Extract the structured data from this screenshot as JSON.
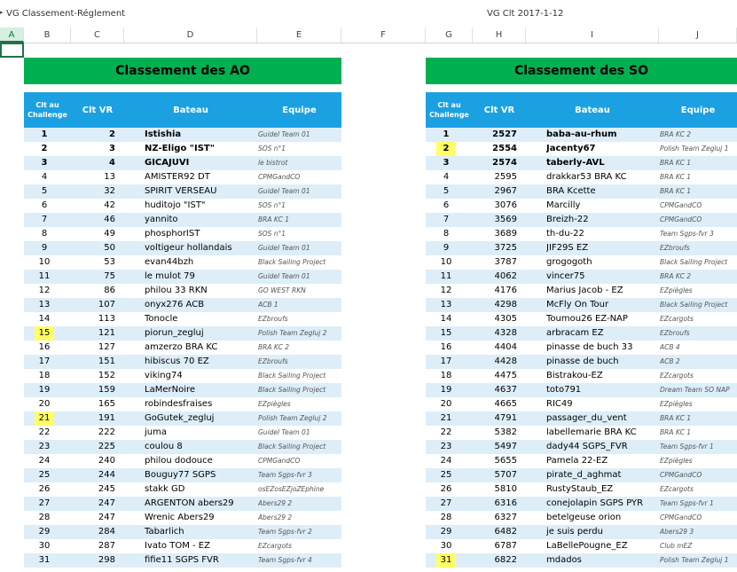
{
  "window": {
    "title": "VG Classement-Réglement",
    "center_title": "VG Clt 2017-1-12"
  },
  "columns": [
    "A",
    "B",
    "C",
    "D",
    "E",
    "F",
    "G",
    "H",
    "I",
    "J"
  ],
  "ao": {
    "banner": "Classement des AO",
    "headers": {
      "rank": "Clt au Challenge",
      "vr": "Clt VR",
      "boat": "Bateau",
      "team": "Equipe"
    },
    "rows": [
      {
        "rank": "1",
        "vr": "2",
        "boat": "Istishia",
        "team": "Guidel Team 01",
        "bold": true
      },
      {
        "rank": "2",
        "vr": "3",
        "boat": "NZ-Eligo \"IST\"",
        "team": "SOS n°1",
        "bold": true
      },
      {
        "rank": "3",
        "vr": "4",
        "boat": "GICAJUVI",
        "team": "le bistrot",
        "bold": true
      },
      {
        "rank": "4",
        "vr": "13",
        "boat": "AMISTER92 DT",
        "team": "CPMGandCO"
      },
      {
        "rank": "5",
        "vr": "32",
        "boat": "SPIRIT VERSEAU",
        "team": "Guidel Team 01"
      },
      {
        "rank": "6",
        "vr": "42",
        "boat": "huditojo \"IST\"",
        "team": "SOS n°1"
      },
      {
        "rank": "7",
        "vr": "46",
        "boat": "yannito",
        "team": "BRA KC 1"
      },
      {
        "rank": "8",
        "vr": "49",
        "boat": "phosphorIST",
        "team": "SOS n°1"
      },
      {
        "rank": "9",
        "vr": "50",
        "boat": "voltigeur hollandais",
        "team": "Guidel Team 01"
      },
      {
        "rank": "10",
        "vr": "53",
        "boat": "evan44bzh",
        "team": "Black Sailing Project"
      },
      {
        "rank": "11",
        "vr": "75",
        "boat": "le mulot 79",
        "team": "Guidel Team 01"
      },
      {
        "rank": "12",
        "vr": "86",
        "boat": "philou 33 RKN",
        "team": "GO WEST RKN"
      },
      {
        "rank": "13",
        "vr": "107",
        "boat": "onyx276 ACB",
        "team": "ACB 1"
      },
      {
        "rank": "14",
        "vr": "113",
        "boat": "Tonocle",
        "team": "EZbroufs"
      },
      {
        "rank": "15",
        "vr": "121",
        "boat": "piorun_zegluj",
        "team": "Polish Team Zegluj 2",
        "hl": true
      },
      {
        "rank": "16",
        "vr": "127",
        "boat": "amzerzo BRA KC",
        "team": "BRA KC 2"
      },
      {
        "rank": "17",
        "vr": "151",
        "boat": "hibiscus 70 EZ",
        "team": "EZbroufs"
      },
      {
        "rank": "18",
        "vr": "152",
        "boat": "viking74",
        "team": "Black Sailing Project"
      },
      {
        "rank": "19",
        "vr": "159",
        "boat": "LaMerNoire",
        "team": "Black Sailing Project"
      },
      {
        "rank": "20",
        "vr": "165",
        "boat": "robindesfraises",
        "team": "EZpiègles"
      },
      {
        "rank": "21",
        "vr": "191",
        "boat": "GoGutek_zegluj",
        "team": "Polish Team Zegluj 2",
        "hl": true
      },
      {
        "rank": "22",
        "vr": "222",
        "boat": "juma",
        "team": "Guidel Team 01"
      },
      {
        "rank": "23",
        "vr": "225",
        "boat": "coulou 8",
        "team": "Black Sailing Project"
      },
      {
        "rank": "24",
        "vr": "240",
        "boat": "philou dodouce",
        "team": "CPMGandCO"
      },
      {
        "rank": "25",
        "vr": "244",
        "boat": "Bouguy77 SGPS",
        "team": "Team Sgps-fvr 3"
      },
      {
        "rank": "26",
        "vr": "245",
        "boat": "stakk GD",
        "team": "osEZosEZjoZEphine"
      },
      {
        "rank": "27",
        "vr": "247",
        "boat": "ARGENTON abers29",
        "team": "Abers29 2"
      },
      {
        "rank": "28",
        "vr": "247",
        "boat": "Wrenic Abers29",
        "team": "Abers29 2"
      },
      {
        "rank": "29",
        "vr": "284",
        "boat": "Tabarlich",
        "team": "Team Sgps-fvr 2"
      },
      {
        "rank": "30",
        "vr": "287",
        "boat": "Ivato TOM - EZ",
        "team": "EZcargots"
      },
      {
        "rank": "31",
        "vr": "298",
        "boat": "fifie11 SGPS FVR",
        "team": "Team Sgps-fvr 4"
      }
    ]
  },
  "so": {
    "banner": "Classement des SO",
    "headers": {
      "rank": "Clt au Challenge",
      "vr": "Clt VR",
      "boat": "Bateau",
      "team": "Equipe"
    },
    "rows": [
      {
        "rank": "1",
        "vr": "2527",
        "boat": "baba-au-rhum",
        "team": "BRA KC 2",
        "bold": true
      },
      {
        "rank": "2",
        "vr": "2554",
        "boat": "Jacenty67",
        "team": "Polish Team Zegluj 1",
        "bold": true,
        "hl": true
      },
      {
        "rank": "3",
        "vr": "2574",
        "boat": "taberly-AVL",
        "team": "BRA KC 1",
        "bold": true
      },
      {
        "rank": "4",
        "vr": "2595",
        "boat": "drakkar53 BRA KC",
        "team": "BRA KC 1"
      },
      {
        "rank": "5",
        "vr": "2967",
        "boat": "BRA Kcette",
        "team": "BRA KC 1"
      },
      {
        "rank": "6",
        "vr": "3076",
        "boat": "Marcilly",
        "team": "CPMGandCO"
      },
      {
        "rank": "7",
        "vr": "3569",
        "boat": "Breizh-22",
        "team": "CPMGandCO"
      },
      {
        "rank": "8",
        "vr": "3689",
        "boat": "th-du-22",
        "team": "Team Sgps-fvr 3"
      },
      {
        "rank": "9",
        "vr": "3725",
        "boat": "JIF29S EZ",
        "team": "EZbroufs"
      },
      {
        "rank": "10",
        "vr": "3787",
        "boat": "grogogoth",
        "team": "Black Sailing Project"
      },
      {
        "rank": "11",
        "vr": "4062",
        "boat": "vincer75",
        "team": "BRA KC 2"
      },
      {
        "rank": "12",
        "vr": "4176",
        "boat": "Marius Jacob - EZ",
        "team": "EZpiègles"
      },
      {
        "rank": "13",
        "vr": "4298",
        "boat": "McFly On Tour",
        "team": "Black Sailing Project"
      },
      {
        "rank": "14",
        "vr": "4305",
        "boat": "Toumou26 EZ-NAP",
        "team": "EZcargots"
      },
      {
        "rank": "15",
        "vr": "4328",
        "boat": "arbracam EZ",
        "team": "EZbroufs"
      },
      {
        "rank": "16",
        "vr": "4404",
        "boat": "pinasse de buch 33",
        "team": "ACB 4"
      },
      {
        "rank": "17",
        "vr": "4428",
        "boat": "pinasse de buch",
        "team": "ACB 2"
      },
      {
        "rank": "18",
        "vr": "4475",
        "boat": "Bistrakou-EZ",
        "team": "EZcargots"
      },
      {
        "rank": "19",
        "vr": "4637",
        "boat": "toto791",
        "team": "Dream Team SO NAP"
      },
      {
        "rank": "20",
        "vr": "4665",
        "boat": "RIC49",
        "team": "EZpiègles"
      },
      {
        "rank": "21",
        "vr": "4791",
        "boat": "passager_du_vent",
        "team": "BRA KC 1"
      },
      {
        "rank": "22",
        "vr": "5382",
        "boat": "labellemarie BRA KC",
        "team": "BRA KC 1"
      },
      {
        "rank": "23",
        "vr": "5497",
        "boat": "dady44 SGPS_FVR",
        "team": "Team Sgps-fvr 1"
      },
      {
        "rank": "24",
        "vr": "5655",
        "boat": "Pamela 22-EZ",
        "team": "EZpiègles"
      },
      {
        "rank": "25",
        "vr": "5707",
        "boat": "pirate_d_aghmat",
        "team": "CPMGandCO"
      },
      {
        "rank": "26",
        "vr": "5810",
        "boat": "RustyStaub_EZ",
        "team": "EZcargots"
      },
      {
        "rank": "27",
        "vr": "6316",
        "boat": "conejolapin SGPS PYR",
        "team": "Team Sgps-fvr 1"
      },
      {
        "rank": "28",
        "vr": "6327",
        "boat": "betelgeuse orion",
        "team": "CPMGandCO"
      },
      {
        "rank": "29",
        "vr": "6482",
        "boat": "je suis perdu",
        "team": "Abers29 3"
      },
      {
        "rank": "30",
        "vr": "6787",
        "boat": "LaBellePougne_EZ",
        "team": "Club mEZ"
      },
      {
        "rank": "31",
        "vr": "6822",
        "boat": "mdados",
        "team": "Polish Team Zegluj 1",
        "hl": true
      }
    ]
  }
}
